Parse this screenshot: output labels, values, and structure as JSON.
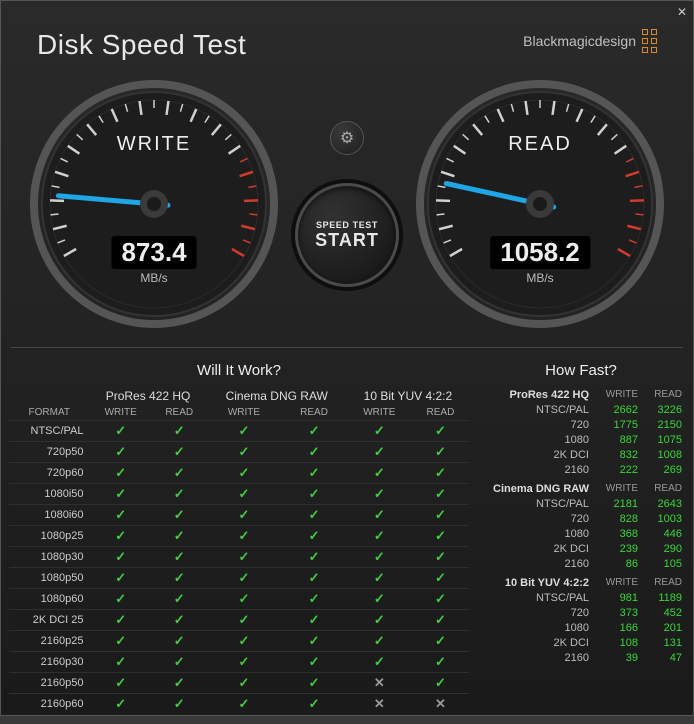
{
  "header": {
    "title": "Disk Speed Test",
    "brand": "Blackmagicdesign"
  },
  "controls": {
    "start_title": "START",
    "start_subtitle": "SPEED TEST"
  },
  "gauges": {
    "style": {
      "outer_ring": "#444444",
      "face": "#1d1d1d",
      "tick_white": "#d0d0d0",
      "tick_red": "#d43a2a",
      "needle": "#1fa6e6",
      "hub_outer": "#3a3a3a",
      "hub_inner": "#1a1a1a",
      "tick_count": 31,
      "red_start_index": 23,
      "start_angle_deg": 150,
      "end_angle_deg": 390,
      "max_value": 6000
    },
    "write": {
      "label": "WRITE",
      "value": "873.4",
      "unit": "MB/s",
      "needle_value": 873.4
    },
    "read": {
      "label": "READ",
      "value": "1058.2",
      "unit": "MB/s",
      "needle_value": 1058.2
    }
  },
  "will_it_work": {
    "title": "Will It Work?",
    "format_header": "FORMAT",
    "codecs": [
      "ProRes 422 HQ",
      "Cinema DNG RAW",
      "10 Bit YUV 4:2:2"
    ],
    "sub_headers": [
      "WRITE",
      "READ"
    ],
    "rows": [
      {
        "format": "NTSC/PAL",
        "cells": [
          true,
          true,
          true,
          true,
          true,
          true
        ]
      },
      {
        "format": "720p50",
        "cells": [
          true,
          true,
          true,
          true,
          true,
          true
        ]
      },
      {
        "format": "720p60",
        "cells": [
          true,
          true,
          true,
          true,
          true,
          true
        ]
      },
      {
        "format": "1080i50",
        "cells": [
          true,
          true,
          true,
          true,
          true,
          true
        ]
      },
      {
        "format": "1080i60",
        "cells": [
          true,
          true,
          true,
          true,
          true,
          true
        ]
      },
      {
        "format": "1080p25",
        "cells": [
          true,
          true,
          true,
          true,
          true,
          true
        ]
      },
      {
        "format": "1080p30",
        "cells": [
          true,
          true,
          true,
          true,
          true,
          true
        ]
      },
      {
        "format": "1080p50",
        "cells": [
          true,
          true,
          true,
          true,
          true,
          true
        ]
      },
      {
        "format": "1080p60",
        "cells": [
          true,
          true,
          true,
          true,
          true,
          true
        ]
      },
      {
        "format": "2K DCI 25",
        "cells": [
          true,
          true,
          true,
          true,
          true,
          true
        ]
      },
      {
        "format": "2160p25",
        "cells": [
          true,
          true,
          true,
          true,
          true,
          true
        ]
      },
      {
        "format": "2160p30",
        "cells": [
          true,
          true,
          true,
          true,
          true,
          true
        ]
      },
      {
        "format": "2160p50",
        "cells": [
          true,
          true,
          true,
          true,
          false,
          true
        ]
      },
      {
        "format": "2160p60",
        "cells": [
          true,
          true,
          true,
          true,
          false,
          false
        ]
      }
    ]
  },
  "how_fast": {
    "title": "How Fast?",
    "sub_headers": [
      "WRITE",
      "READ"
    ],
    "sections": [
      {
        "name": "ProRes 422 HQ",
        "rows": [
          {
            "label": "NTSC/PAL",
            "write": 2662,
            "read": 3226
          },
          {
            "label": "720",
            "write": 1775,
            "read": 2150
          },
          {
            "label": "1080",
            "write": 887,
            "read": 1075
          },
          {
            "label": "2K DCI",
            "write": 832,
            "read": 1008
          },
          {
            "label": "2160",
            "write": 222,
            "read": 269
          }
        ]
      },
      {
        "name": "Cinema DNG RAW",
        "rows": [
          {
            "label": "NTSC/PAL",
            "write": 2181,
            "read": 2643
          },
          {
            "label": "720",
            "write": 828,
            "read": 1003
          },
          {
            "label": "1080",
            "write": 368,
            "read": 446
          },
          {
            "label": "2K DCI",
            "write": 239,
            "read": 290
          },
          {
            "label": "2160",
            "write": 86,
            "read": 105
          }
        ]
      },
      {
        "name": "10 Bit YUV 4:2:2",
        "rows": [
          {
            "label": "NTSC/PAL",
            "write": 981,
            "read": 1189
          },
          {
            "label": "720",
            "write": 373,
            "read": 452
          },
          {
            "label": "1080",
            "write": 166,
            "read": 201
          },
          {
            "label": "2K DCI",
            "write": 108,
            "read": 131
          },
          {
            "label": "2160",
            "write": 39,
            "read": 47
          }
        ]
      }
    ]
  }
}
